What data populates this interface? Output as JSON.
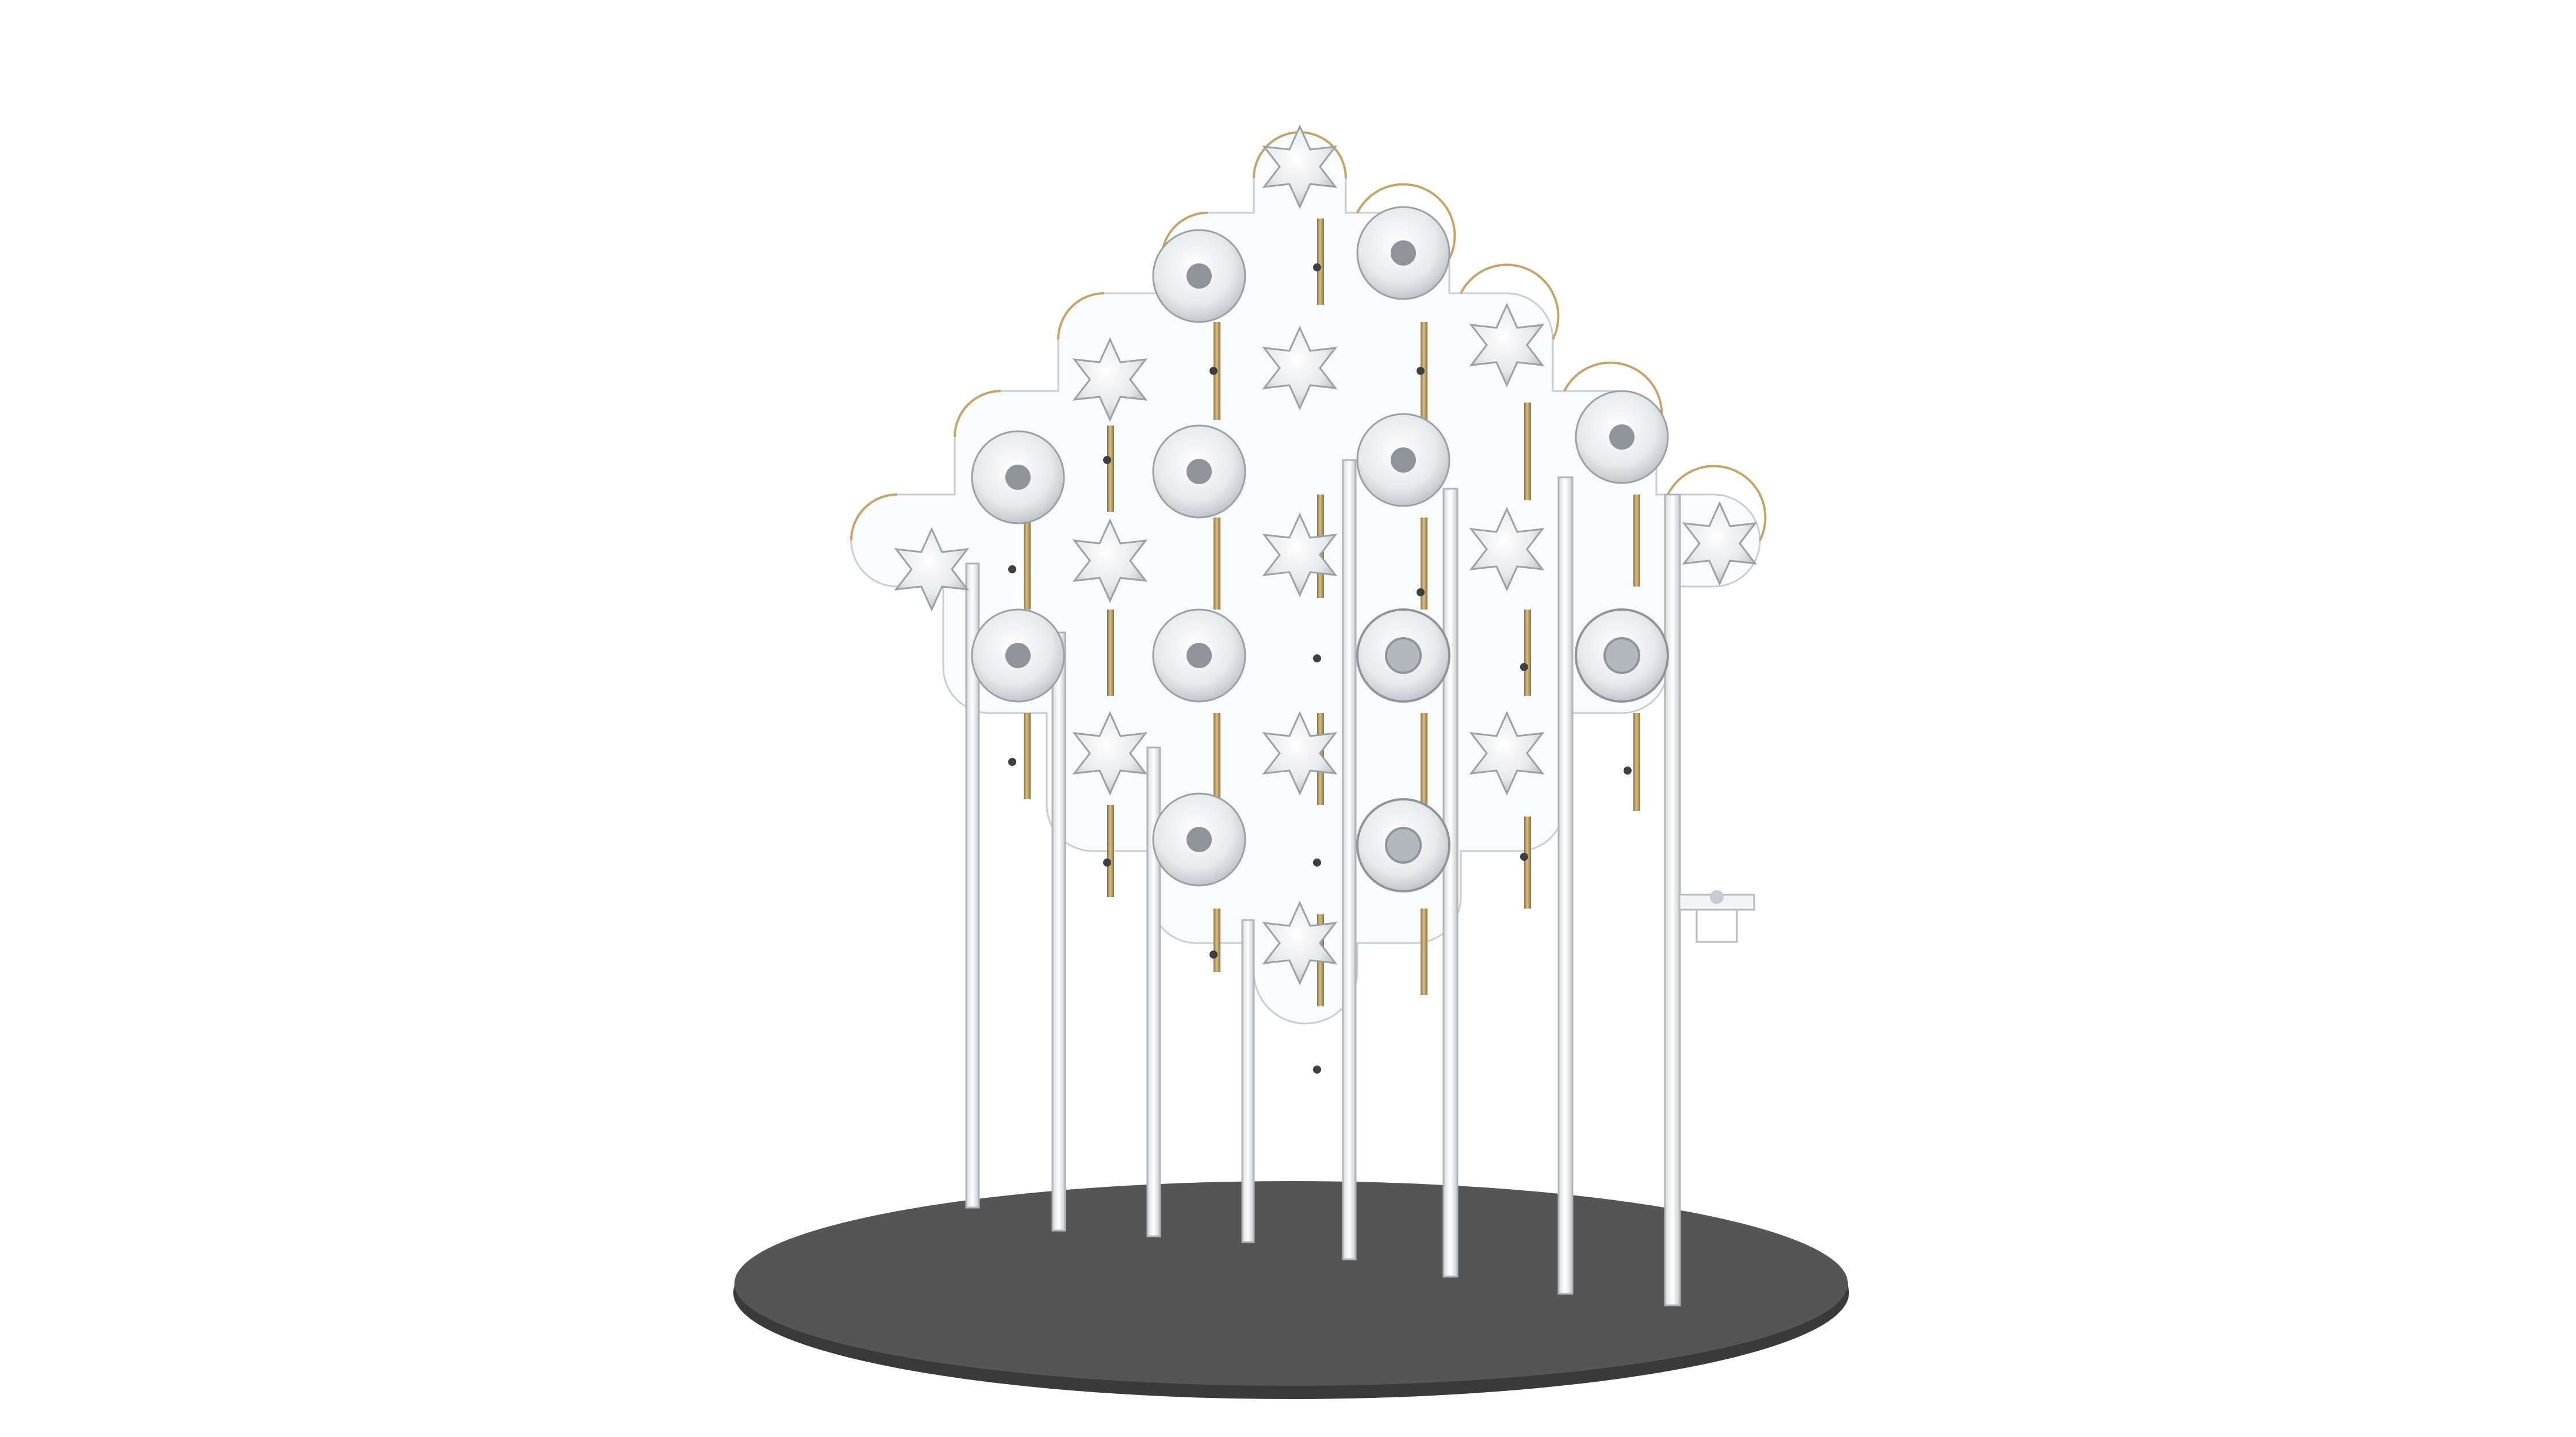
{
  "scene": {
    "background": "#ffffff",
    "colors": {
      "base_disc": "#545454",
      "base_edge": "#3a3a3a",
      "acrylic_fill": "#f7f8f9",
      "acrylic_edge": "#c9ced3",
      "brass": "#c4a46a",
      "brass_dark": "#8c7340",
      "ornament": "#e9ebee",
      "ornament_shade": "#b7bcc2",
      "post": "#f1f3f5",
      "post_edge": "#aeb4ba"
    },
    "ornament_types": [
      "star-ornament",
      "rosette-ornament",
      "wheel-ornament"
    ],
    "ornament_count": 26,
    "post_count": 8
  }
}
